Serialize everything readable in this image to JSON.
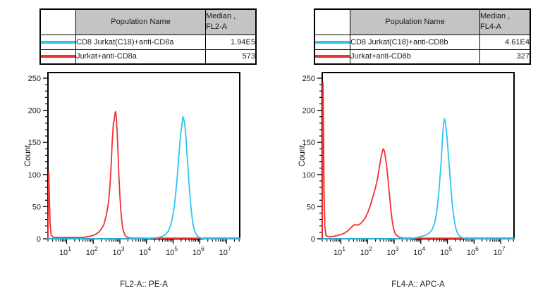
{
  "colors": {
    "cyan": "#2BC5F0",
    "red": "#F23130",
    "table_header_bg": "#C4C4C4",
    "border": "#000000",
    "text": "#1A1A1A"
  },
  "panels": [
    {
      "table": {
        "header": {
          "population": "Population Name",
          "median_line1": "Median ,",
          "median_line2": "FL2-A"
        },
        "rows": [
          {
            "swatch_color": "#2BC5F0",
            "population": "CD8 Jurkat(C18)+anti-CD8a",
            "median": "1.94E5"
          },
          {
            "swatch_color": "#F23130",
            "population": "Jurkat+anti-CD8a",
            "median": "573"
          }
        ]
      }
    },
    {
      "table": {
        "header": {
          "population": "Population Name",
          "median_line1": "Median ,",
          "median_line2": "FL4-A"
        },
        "rows": [
          {
            "swatch_color": "#2BC5F0",
            "population": "CD8 Jurkat(C18)+anti-CD8b",
            "median": "4.61E4"
          },
          {
            "swatch_color": "#F23130",
            "population": "Jurkat+anti-CD8b",
            "median": "327"
          }
        ]
      }
    }
  ],
  "chart_data": [
    {
      "type": "line",
      "title": "",
      "xlabel": "FL2-A:: PE-A",
      "ylabel": "Count",
      "x_scale": "log",
      "xlim_log": [
        0.3,
        7.5
      ],
      "ylim": [
        0,
        250
      ],
      "y_major_ticks": [
        0,
        50,
        100,
        150,
        200,
        250
      ],
      "y_minor_step": 10,
      "x_major_ticks_exp": [
        1,
        2,
        3,
        4,
        5,
        6,
        7
      ],
      "grid": false,
      "legend_position": "table-above",
      "series": [
        {
          "name": "Jurkat+anti-CD8a",
          "color": "#F23130",
          "median": 573,
          "peak_count": 198,
          "points_logx_count": [
            [
              0.3,
              0
            ],
            [
              0.33,
              105
            ],
            [
              0.35,
              70
            ],
            [
              0.38,
              25
            ],
            [
              0.42,
              6
            ],
            [
              0.5,
              2
            ],
            [
              0.8,
              2
            ],
            [
              1.2,
              2
            ],
            [
              1.6,
              2
            ],
            [
              1.9,
              4
            ],
            [
              2.05,
              6
            ],
            [
              2.2,
              10
            ],
            [
              2.3,
              15
            ],
            [
              2.4,
              22
            ],
            [
              2.5,
              38
            ],
            [
              2.58,
              58
            ],
            [
              2.64,
              90
            ],
            [
              2.68,
              120
            ],
            [
              2.71,
              148
            ],
            [
              2.74,
              170
            ],
            [
              2.76,
              181
            ],
            [
              2.79,
              185
            ],
            [
              2.82,
              196
            ],
            [
              2.84,
              198
            ],
            [
              2.87,
              188
            ],
            [
              2.9,
              165
            ],
            [
              2.93,
              135
            ],
            [
              2.96,
              100
            ],
            [
              3.0,
              68
            ],
            [
              3.04,
              42
            ],
            [
              3.08,
              25
            ],
            [
              3.12,
              14
            ],
            [
              3.17,
              8
            ],
            [
              3.22,
              4
            ],
            [
              3.3,
              2
            ],
            [
              3.42,
              1
            ],
            [
              3.6,
              1
            ],
            [
              4.2,
              1
            ],
            [
              5.0,
              1
            ],
            [
              6.0,
              1
            ],
            [
              7.5,
              1
            ]
          ]
        },
        {
          "name": "CD8 Jurkat(C18)+anti-CD8a",
          "color": "#2BC5F0",
          "median": 194000,
          "peak_count": 190,
          "points_logx_count": [
            [
              0.3,
              0
            ],
            [
              1.0,
              0
            ],
            [
              2.0,
              0
            ],
            [
              3.0,
              0
            ],
            [
              3.8,
              0
            ],
            [
              4.2,
              1
            ],
            [
              4.45,
              2
            ],
            [
              4.6,
              4
            ],
            [
              4.72,
              7
            ],
            [
              4.82,
              12
            ],
            [
              4.9,
              20
            ],
            [
              4.98,
              34
            ],
            [
              5.05,
              52
            ],
            [
              5.1,
              72
            ],
            [
              5.15,
              95
            ],
            [
              5.2,
              122
            ],
            [
              5.25,
              148
            ],
            [
              5.29,
              166
            ],
            [
              5.33,
              178
            ],
            [
              5.36,
              190
            ],
            [
              5.4,
              186
            ],
            [
              5.44,
              176
            ],
            [
              5.48,
              158
            ],
            [
              5.52,
              132
            ],
            [
              5.57,
              102
            ],
            [
              5.62,
              72
            ],
            [
              5.67,
              48
            ],
            [
              5.72,
              30
            ],
            [
              5.77,
              18
            ],
            [
              5.82,
              11
            ],
            [
              5.88,
              6
            ],
            [
              5.95,
              3
            ],
            [
              6.05,
              1
            ],
            [
              6.2,
              0
            ],
            [
              6.6,
              0
            ],
            [
              7.5,
              0
            ]
          ]
        }
      ]
    },
    {
      "type": "line",
      "title": "",
      "xlabel": "FL4-A:: APC-A",
      "ylabel": "Count",
      "x_scale": "log",
      "xlim_log": [
        0.3,
        7.5
      ],
      "ylim": [
        0,
        250
      ],
      "y_major_ticks": [
        0,
        50,
        100,
        150,
        200,
        250
      ],
      "y_minor_step": 10,
      "x_major_ticks_exp": [
        1,
        2,
        3,
        4,
        5,
        6,
        7
      ],
      "grid": false,
      "legend_position": "table-above",
      "series": [
        {
          "name": "Jurkat+anti-CD8b",
          "color": "#F23130",
          "median": 327,
          "peak_count": 140,
          "points_logx_count": [
            [
              0.3,
              0
            ],
            [
              0.33,
              243
            ],
            [
              0.35,
              160
            ],
            [
              0.37,
              70
            ],
            [
              0.4,
              18
            ],
            [
              0.44,
              5
            ],
            [
              0.55,
              3
            ],
            [
              0.75,
              4
            ],
            [
              0.95,
              6
            ],
            [
              1.15,
              9
            ],
            [
              1.3,
              14
            ],
            [
              1.42,
              19
            ],
            [
              1.52,
              22
            ],
            [
              1.62,
              21
            ],
            [
              1.72,
              23
            ],
            [
              1.82,
              27
            ],
            [
              1.92,
              33
            ],
            [
              2.02,
              42
            ],
            [
              2.12,
              54
            ],
            [
              2.22,
              68
            ],
            [
              2.3,
              80
            ],
            [
              2.38,
              95
            ],
            [
              2.44,
              110
            ],
            [
              2.5,
              125
            ],
            [
              2.55,
              135
            ],
            [
              2.59,
              140
            ],
            [
              2.63,
              137
            ],
            [
              2.67,
              128
            ],
            [
              2.72,
              113
            ],
            [
              2.77,
              93
            ],
            [
              2.82,
              70
            ],
            [
              2.87,
              48
            ],
            [
              2.92,
              30
            ],
            [
              2.97,
              17
            ],
            [
              3.03,
              9
            ],
            [
              3.1,
              5
            ],
            [
              3.2,
              2
            ],
            [
              3.35,
              1
            ],
            [
              3.6,
              1
            ],
            [
              4.5,
              1
            ],
            [
              5.5,
              1
            ],
            [
              6.5,
              1
            ],
            [
              7.5,
              1
            ]
          ]
        },
        {
          "name": "CD8 Jurkat(C18)+anti-CD8b",
          "color": "#2BC5F0",
          "median": 46100,
          "peak_count": 187,
          "points_logx_count": [
            [
              0.3,
              0
            ],
            [
              1.0,
              0
            ],
            [
              2.0,
              0
            ],
            [
              3.0,
              0
            ],
            [
              3.55,
              0
            ],
            [
              3.75,
              1
            ],
            [
              3.95,
              3
            ],
            [
              4.15,
              5
            ],
            [
              4.3,
              8
            ],
            [
              4.42,
              14
            ],
            [
              4.52,
              24
            ],
            [
              4.6,
              42
            ],
            [
              4.66,
              65
            ],
            [
              4.71,
              90
            ],
            [
              4.76,
              118
            ],
            [
              4.8,
              145
            ],
            [
              4.83,
              165
            ],
            [
              4.86,
              180
            ],
            [
              4.89,
              187
            ],
            [
              4.93,
              180
            ],
            [
              4.97,
              165
            ],
            [
              5.01,
              145
            ],
            [
              5.06,
              118
            ],
            [
              5.11,
              90
            ],
            [
              5.16,
              64
            ],
            [
              5.21,
              44
            ],
            [
              5.26,
              28
            ],
            [
              5.31,
              17
            ],
            [
              5.37,
              10
            ],
            [
              5.43,
              5
            ],
            [
              5.5,
              3
            ],
            [
              5.6,
              1
            ],
            [
              5.75,
              0
            ],
            [
              6.2,
              0
            ],
            [
              7.5,
              0
            ]
          ]
        }
      ]
    }
  ]
}
